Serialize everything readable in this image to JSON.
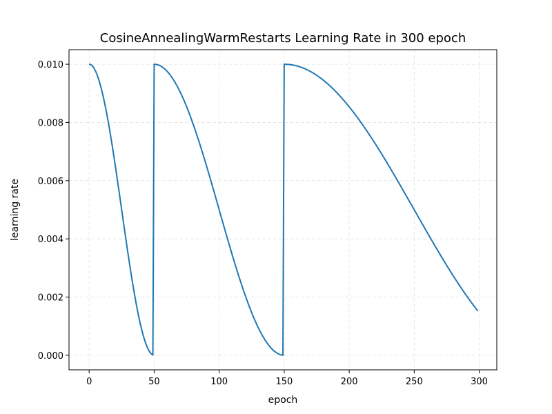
{
  "chart_data": {
    "type": "line",
    "title": "CosineAnnealingWarmRestarts Learning Rate in 300 epoch",
    "xlabel": "epoch",
    "ylabel": "learning rate",
    "xlim": [
      -15.5,
      313.5
    ],
    "ylim": [
      -0.0005,
      0.0105
    ],
    "x_ticks": [
      0,
      50,
      100,
      150,
      200,
      250,
      300
    ],
    "x_tick_labels": [
      "0",
      "50",
      "100",
      "150",
      "200",
      "250",
      "300"
    ],
    "y_ticks": [
      0.0,
      0.002,
      0.004,
      0.006,
      0.008,
      0.01
    ],
    "y_tick_labels": [
      "0.000",
      "0.002",
      "0.004",
      "0.006",
      "0.008",
      "0.010"
    ],
    "grid": true,
    "schedule": {
      "eta_max": 0.01,
      "eta_min": 0.0,
      "T_0": 50,
      "T_mult": 2,
      "epochs": 300
    },
    "series": [
      {
        "color": "#1f77b4"
      }
    ]
  }
}
